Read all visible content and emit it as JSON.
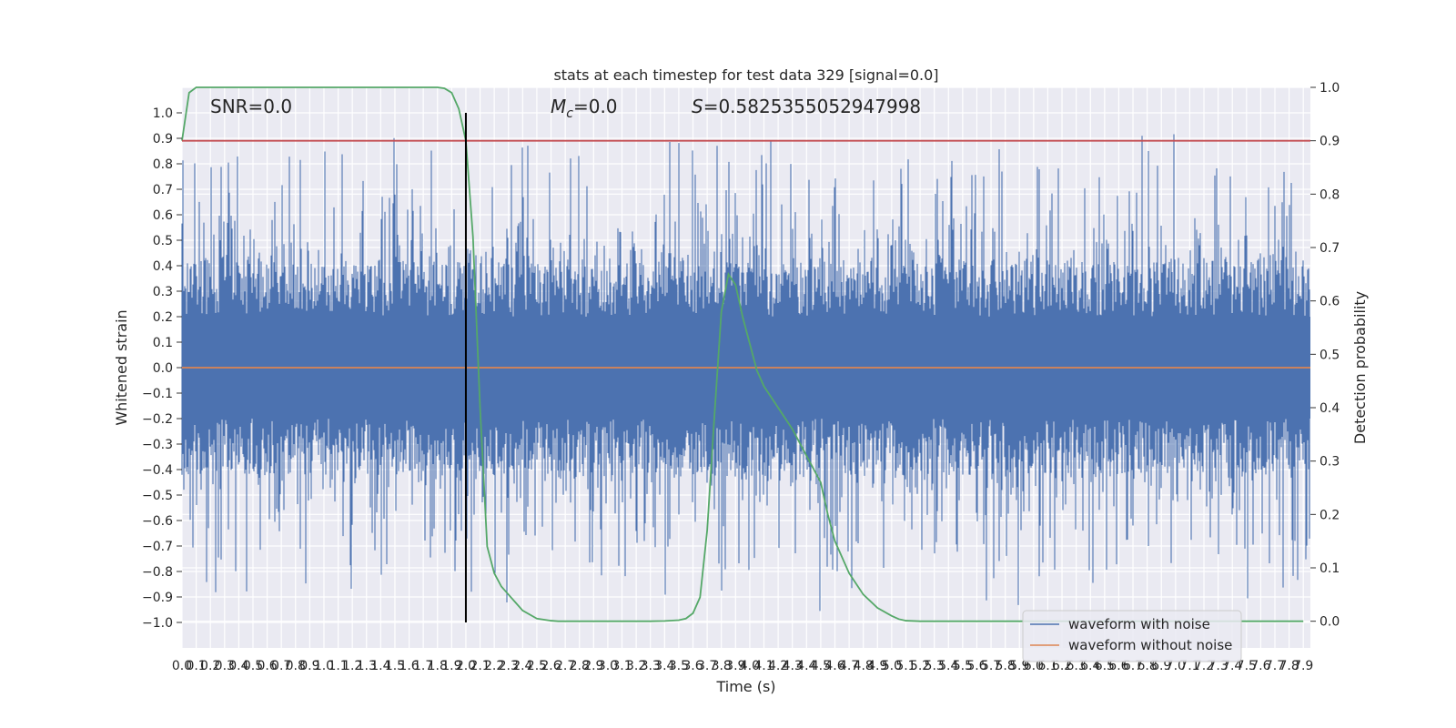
{
  "chart_data": {
    "type": "line",
    "title": "stats at each timestep for test data 329 [signal=0.0]",
    "xlabel": "Time (s)",
    "ylabel": "Whitened strain",
    "y2label": "Detection probability",
    "xlim": [
      0.0,
      7.95
    ],
    "ylim": [
      -1.1,
      1.1
    ],
    "y2lim": [
      -0.05,
      1.0
    ],
    "x_ticks": [
      "0.0",
      "0.1",
      "0.2",
      "0.3",
      "0.4",
      "0.5",
      "0.6",
      "0.7",
      "0.8",
      "0.9",
      "1.0",
      "1.1",
      "1.2",
      "1.3",
      "1.4",
      "1.5",
      "1.6",
      "1.7",
      "1.8",
      "1.9",
      "2.0",
      "2.1",
      "2.2",
      "2.3",
      "2.4",
      "2.5",
      "2.6",
      "2.7",
      "2.8",
      "2.9",
      "3.0",
      "3.1",
      "3.2",
      "3.3",
      "3.4",
      "3.5",
      "3.6",
      "3.7",
      "3.8",
      "3.9",
      "4.0",
      "4.1",
      "4.2",
      "4.3",
      "4.4",
      "4.5",
      "4.6",
      "4.7",
      "4.8",
      "4.9",
      "5.0",
      "5.1",
      "5.2",
      "5.3",
      "5.4",
      "5.5",
      "5.6",
      "5.7",
      "5.8",
      "5.9",
      "6.0",
      "6.1",
      "6.2",
      "6.3",
      "6.4",
      "6.5",
      "6.6",
      "6.7",
      "6.8",
      "6.9",
      "7.0",
      "7.1",
      "7.2",
      "7.3",
      "7.4",
      "7.5",
      "7.6",
      "7.7",
      "7.8",
      "7.9"
    ],
    "y_ticks": [
      "1.0",
      "0.9",
      "0.8",
      "0.7",
      "0.6",
      "0.5",
      "0.4",
      "0.3",
      "0.2",
      "0.1",
      "0.0",
      "-0.1",
      "-0.2",
      "-0.3",
      "-0.4",
      "-0.5",
      "-0.6",
      "-0.7",
      "-0.8",
      "-0.9",
      "-1.0"
    ],
    "y2_ticks": [
      "1.0",
      "0.9",
      "0.8",
      "0.7",
      "0.6",
      "0.5",
      "0.4",
      "0.3",
      "0.2",
      "0.1",
      "0.0"
    ],
    "annotations": {
      "snr": "SNR=0.0",
      "mc_symbol": "M",
      "mc_sub": "c",
      "mc_value": "=0.0",
      "s_symbol": "S",
      "s_value": "=0.5825355052947998"
    },
    "legend": {
      "placement": "lower-right",
      "entries": [
        "waveform with noise",
        "waveform without noise"
      ]
    },
    "grid": true,
    "series": [
      {
        "name": "waveform with noise",
        "color": "#4c72b0",
        "kind": "noise",
        "amplitude": 0.2,
        "max_abs": 1.0
      },
      {
        "name": "waveform without noise",
        "color": "#dd8452",
        "x": [
          0.0,
          7.95
        ],
        "y": [
          0.0,
          0.0
        ]
      },
      {
        "name": "detection probability",
        "color": "#55a868",
        "axis": "right",
        "x": [
          0.0,
          0.05,
          0.1,
          0.2,
          0.3,
          0.5,
          0.8,
          1.0,
          1.5,
          1.8,
          1.85,
          1.9,
          1.95,
          2.0,
          2.05,
          2.1,
          2.15,
          2.2,
          2.25,
          2.3,
          2.35,
          2.4,
          2.5,
          2.6,
          2.65,
          2.7,
          2.8,
          3.0,
          3.3,
          3.4,
          3.5,
          3.55,
          3.6,
          3.65,
          3.7,
          3.75,
          3.8,
          3.85,
          3.9,
          3.95,
          4.0,
          4.05,
          4.1,
          4.2,
          4.3,
          4.4,
          4.5,
          4.55,
          4.6,
          4.7,
          4.8,
          4.9,
          5.0,
          5.05,
          5.1,
          5.2,
          5.5,
          7.5,
          7.9
        ],
        "y": [
          0.9,
          0.99,
          1.0,
          1.0,
          1.0,
          1.0,
          1.0,
          1.0,
          1.0,
          1.0,
          0.998,
          0.99,
          0.96,
          0.9,
          0.72,
          0.4,
          0.14,
          0.09,
          0.065,
          0.05,
          0.035,
          0.02,
          0.005,
          0.001,
          0.0,
          0.0,
          0.0,
          0.0,
          0.0,
          0.0005,
          0.002,
          0.005,
          0.015,
          0.045,
          0.17,
          0.38,
          0.58,
          0.65,
          0.63,
          0.57,
          0.52,
          0.47,
          0.44,
          0.4,
          0.36,
          0.31,
          0.26,
          0.2,
          0.15,
          0.09,
          0.05,
          0.025,
          0.01,
          0.004,
          0.001,
          0.0,
          0.0,
          0.0,
          0.0
        ]
      },
      {
        "name": "threshold",
        "color": "#c44e52",
        "axis": "right",
        "x": [
          0.0,
          7.95
        ],
        "y": [
          0.9,
          0.9
        ]
      },
      {
        "name": "marker",
        "color": "#000000",
        "x": [
          2.0,
          2.0
        ],
        "y": [
          -1.0,
          1.0
        ]
      }
    ]
  }
}
